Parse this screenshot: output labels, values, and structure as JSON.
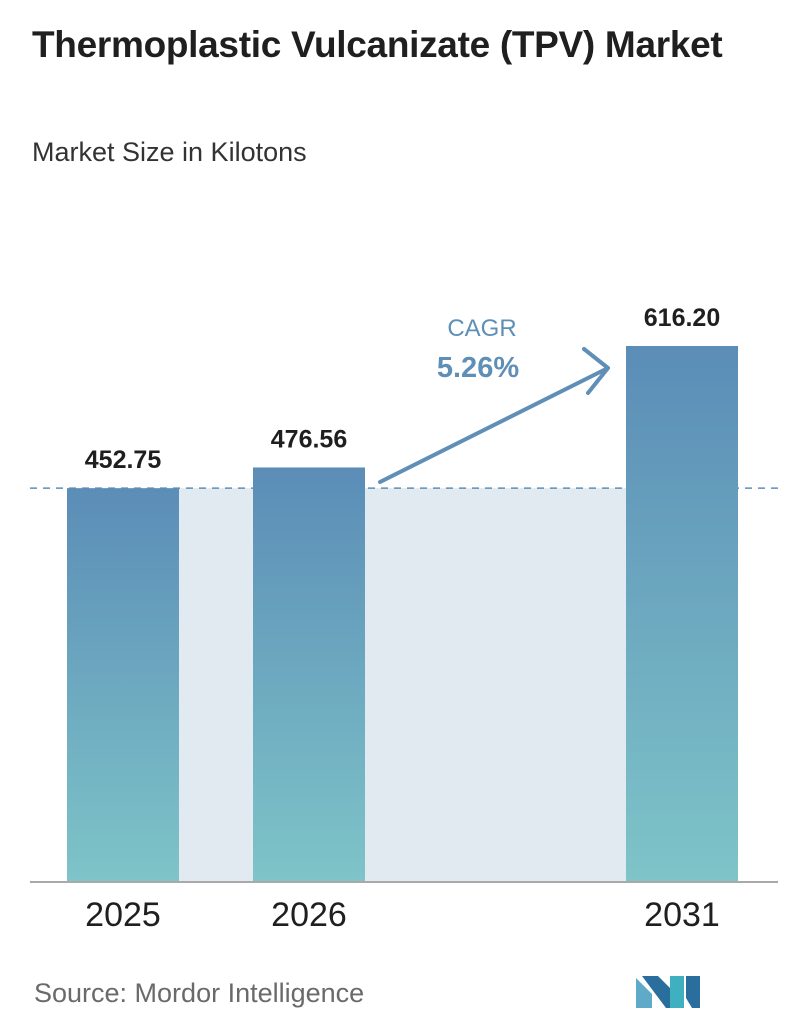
{
  "header": {
    "title": "Thermoplastic Vulcanizate (TPV) Market",
    "subtitle": "Market Size in Kilotons"
  },
  "chart_data": {
    "type": "bar",
    "categories": [
      "2025",
      "2026",
      "2031"
    ],
    "values": [
      452.75,
      476.56,
      616.2
    ],
    "value_labels": [
      "452.75",
      "476.56",
      "616.20"
    ],
    "ylim": [
      0,
      616.2
    ],
    "grid": false,
    "cagr_label": "CAGR",
    "cagr_value": "5.26%",
    "colors": {
      "bar_top": "#5b8db7",
      "bar_bottom": "#7ec4c8",
      "band": "#e1e9f1",
      "arrow": "#5f8fb6",
      "dashed_line": "#5f8fb6",
      "axis": "#a9a9a9"
    }
  },
  "footer": {
    "source": "Source:  Mordor Intelligence",
    "logo_icon": "mordor-intelligence-logo-icon"
  }
}
